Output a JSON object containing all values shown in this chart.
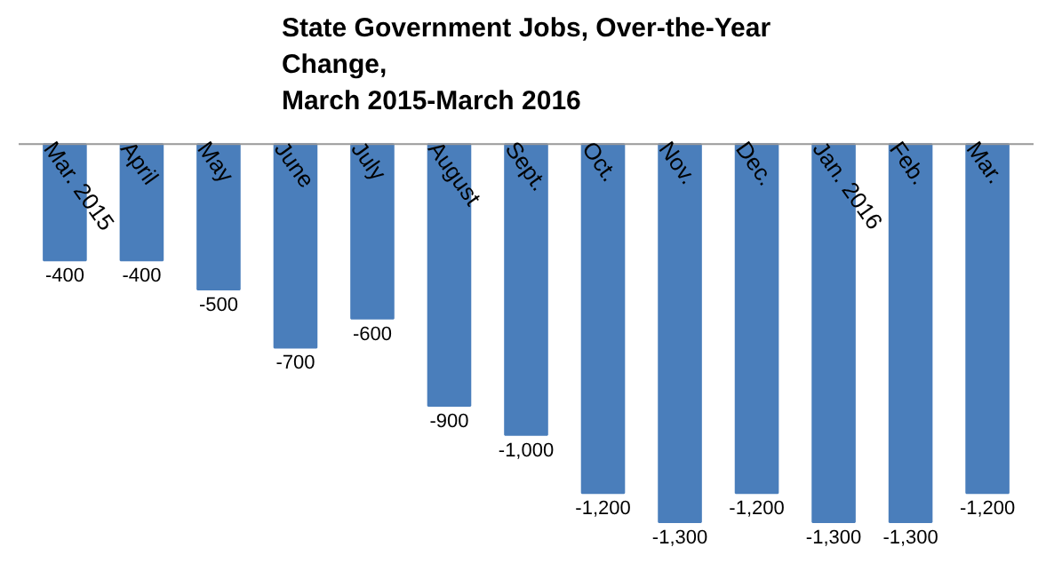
{
  "chart_data": {
    "type": "bar",
    "title": "State Government Jobs, Over-the-Year\nChange,\nMarch 2015-March 2016",
    "categories": [
      "Mar. 2015",
      "April",
      "May",
      "June",
      "July",
      "August",
      "Sept.",
      "Oct.",
      "Nov.",
      "Dec.",
      "Jan. 2016",
      "Feb.",
      "Mar."
    ],
    "values": [
      -400,
      -400,
      -500,
      -700,
      -600,
      -900,
      -1000,
      -1200,
      -1300,
      -1200,
      -1300,
      -1300,
      -1200
    ],
    "value_labels": [
      "-400",
      "-400",
      "-500",
      "-700",
      "-600",
      "-900",
      "-1,000",
      "-1,200",
      "-1,300",
      "-1,200",
      "-1,300",
      "-1,300",
      "-1,200"
    ],
    "color": "#4a7ebb",
    "grid": false
  }
}
